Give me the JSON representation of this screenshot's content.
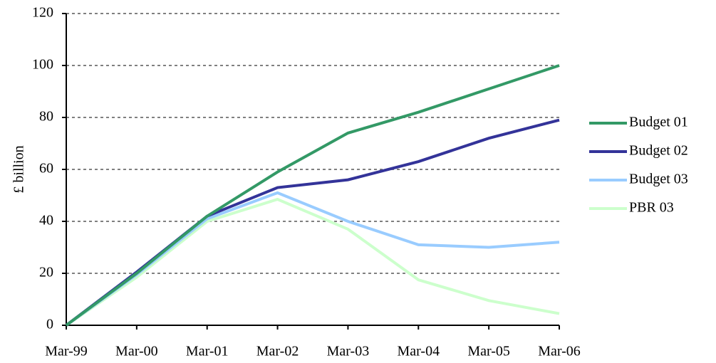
{
  "chart_data": {
    "type": "line",
    "y_label": "£ billion",
    "categories": [
      "Mar-99",
      "Mar-00",
      "Mar-01",
      "Mar-02",
      "Mar-03",
      "Mar-04",
      "Mar-05",
      "Mar-06"
    ],
    "series": [
      {
        "name": "Budget 01",
        "color": "#339966",
        "values": [
          0,
          20,
          42,
          59,
          74,
          82,
          91,
          100
        ]
      },
      {
        "name": "Budget 02",
        "color": "#333399",
        "values": [
          0,
          20.5,
          42,
          53,
          56,
          63,
          72,
          79
        ]
      },
      {
        "name": "Budget 03",
        "color": "#99ccff",
        "values": [
          0,
          19.5,
          41,
          51,
          40,
          31,
          30,
          32
        ]
      },
      {
        "name": "PBR 03",
        "color": "#ccffcc",
        "values": [
          0,
          18.5,
          40,
          48.5,
          37,
          17.5,
          9.5,
          4.5
        ]
      }
    ],
    "ylim": [
      0,
      120
    ],
    "yticks": [
      0,
      20,
      40,
      60,
      80,
      100,
      120
    ],
    "grid": true,
    "legend": "right"
  }
}
